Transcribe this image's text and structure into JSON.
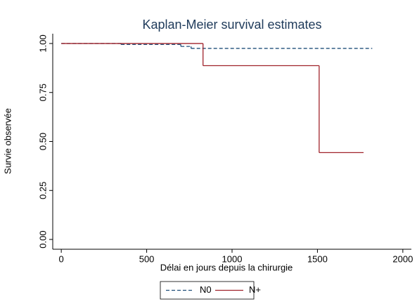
{
  "chart_data": {
    "type": "step",
    "title": "Kaplan-Meier survival estimates",
    "x_label": "Délai en jours depuis la chirurgie",
    "y_label": "Survie observée",
    "xlim": [
      -50,
      2050
    ],
    "ylim": [
      -0.05,
      1.05
    ],
    "xticks": [
      0,
      500,
      1000,
      1500,
      2000
    ],
    "yticks": [
      {
        "value": 0,
        "label": "0.00"
      },
      {
        "value": 0.25,
        "label": "0.25"
      },
      {
        "value": 0.5,
        "label": "0.50"
      },
      {
        "value": 0.75,
        "label": "0.75"
      },
      {
        "value": 1,
        "label": "1.00"
      }
    ],
    "legend": "bottom",
    "series": [
      {
        "name": "N0",
        "color": "#1f4e79",
        "dash": true,
        "x": [
          0,
          350,
          700,
          760,
          1820
        ],
        "values": [
          1,
          0.995,
          0.985,
          0.975,
          0.975
        ]
      },
      {
        "name": "N+",
        "color": "#a0222a",
        "dash": false,
        "x": [
          0,
          830,
          1510,
          1770
        ],
        "values": [
          1,
          0.887,
          0.443,
          0.443
        ]
      }
    ]
  }
}
